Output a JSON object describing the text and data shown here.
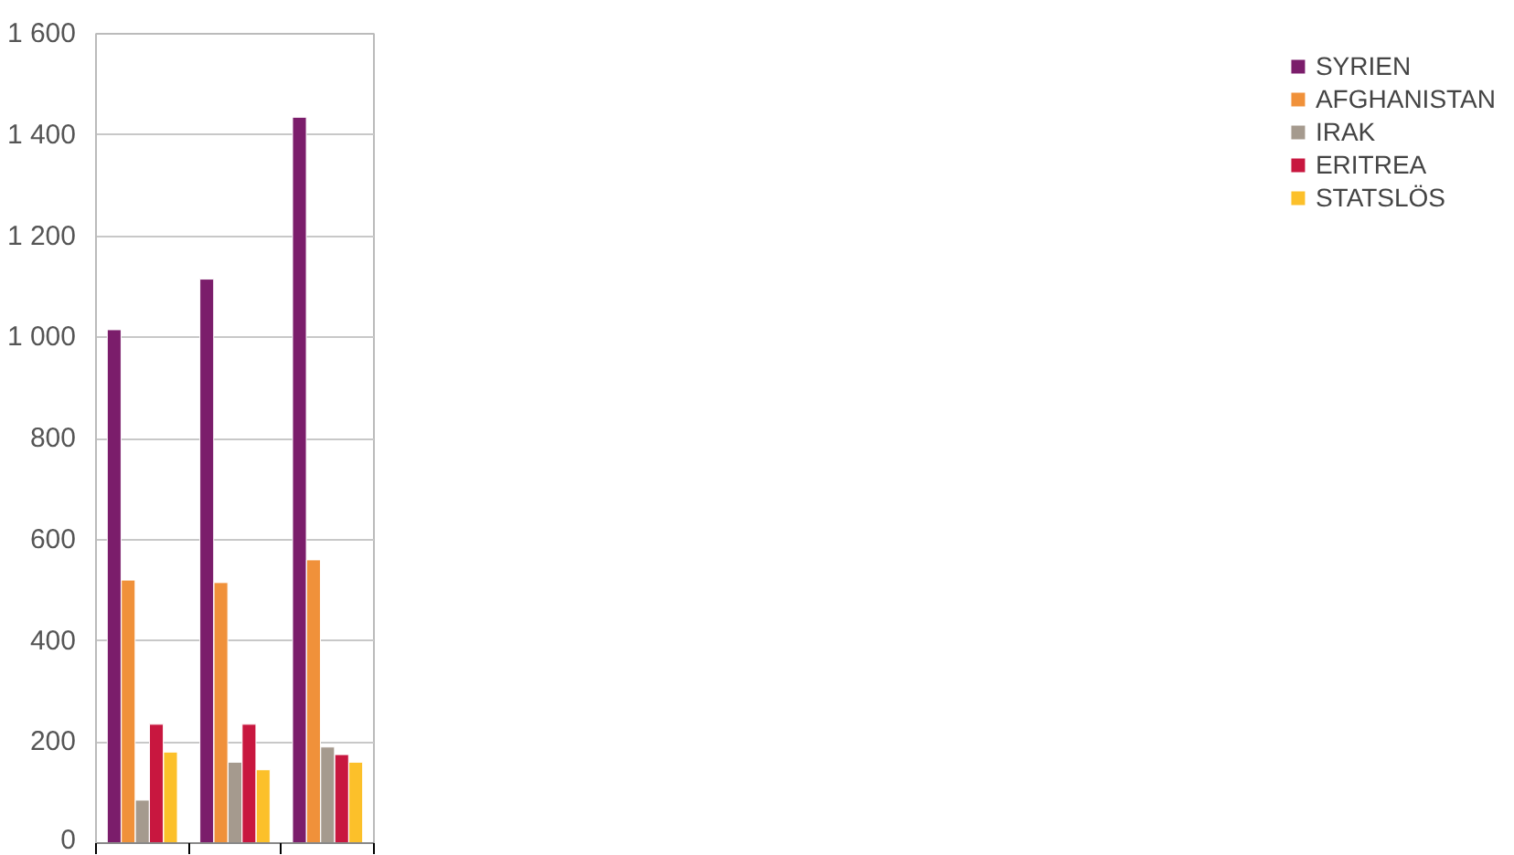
{
  "chart_data": {
    "type": "bar",
    "categories": [
      null,
      null,
      null
    ],
    "series": [
      {
        "name": "SYRIEN",
        "color": "#7b1d6b",
        "values": [
          1015,
          1115,
          1435
        ]
      },
      {
        "name": "AFGHANISTAN",
        "color": "#f0913a",
        "values": [
          520,
          515,
          560
        ]
      },
      {
        "name": "IRAK",
        "color": "#a59a8e",
        "values": [
          85,
          160,
          190
        ]
      },
      {
        "name": "ERITREA",
        "color": "#c8173f",
        "values": [
          235,
          235,
          175
        ]
      },
      {
        "name": "STATSLÖS",
        "color": "#fcc02a",
        "values": [
          180,
          145,
          160
        ]
      }
    ],
    "ylim": [
      0,
      1600
    ],
    "yticks": [
      0,
      200,
      400,
      600,
      800,
      {
        "value": 1000,
        "label": "1 000"
      },
      {
        "value": 1200,
        "label": "1 200"
      },
      {
        "value": 1400,
        "label": "1 400"
      },
      {
        "value": 1600,
        "label": "1 600"
      }
    ],
    "grid": "y",
    "legend": "right"
  }
}
